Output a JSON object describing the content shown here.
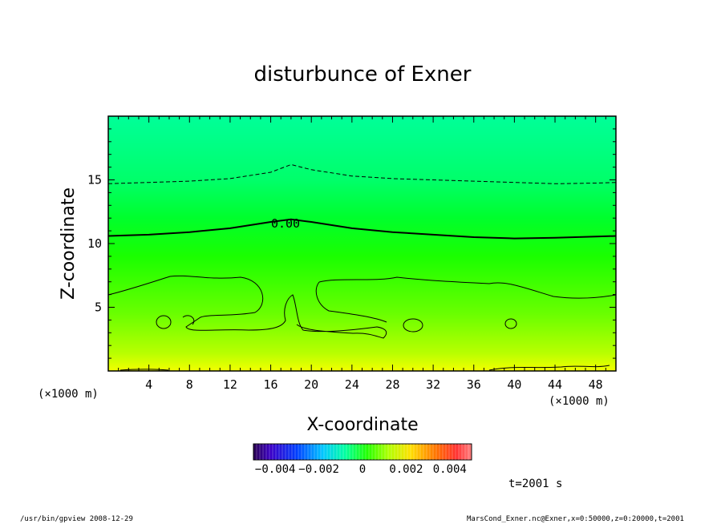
{
  "chart_data": {
    "type": "heatmap",
    "title": "disturbunce of Exner",
    "xlabel": "X-coordinate",
    "ylabel": "Z-coordinate",
    "x_unit": "(×1000 m)",
    "y_unit": "(×1000 m)",
    "xlim": [
      0,
      50
    ],
    "ylim": [
      0,
      20
    ],
    "x_ticks": [
      4,
      8,
      12,
      16,
      20,
      24,
      28,
      32,
      36,
      40,
      44,
      48
    ],
    "y_ticks": [
      5,
      10,
      15
    ],
    "contour_label": "0.00",
    "colorbar": {
      "tick_labels": [
        "−0.004",
        "−0.002",
        "0",
        "0.002",
        "0.004"
      ],
      "range": [
        -0.005,
        0.005
      ]
    },
    "contours": [
      {
        "style": "dashed",
        "x": [
          0,
          4,
          8,
          12,
          16,
          18,
          20,
          24,
          28,
          32,
          36,
          40,
          44,
          48,
          50
        ],
        "y": [
          14.7,
          14.8,
          14.9,
          15.1,
          15.6,
          16.2,
          15.8,
          15.3,
          15.1,
          15.0,
          14.9,
          14.8,
          14.7,
          14.75,
          14.8
        ]
      },
      {
        "style": "solid-bold",
        "x": [
          0,
          4,
          8,
          12,
          16,
          18,
          20,
          24,
          28,
          32,
          36,
          40,
          44,
          48,
          50
        ],
        "y": [
          10.6,
          10.7,
          10.9,
          11.2,
          11.7,
          11.9,
          11.7,
          11.2,
          10.9,
          10.7,
          10.5,
          10.4,
          10.45,
          10.55,
          10.6
        ]
      }
    ],
    "time_label": "t=2001 s"
  },
  "footer": {
    "left": "/usr/bin/gpview   2008-12-29",
    "right": "MarsCond_Exner.nc@Exner,x=0:50000,z=0:20000,t=2001"
  }
}
